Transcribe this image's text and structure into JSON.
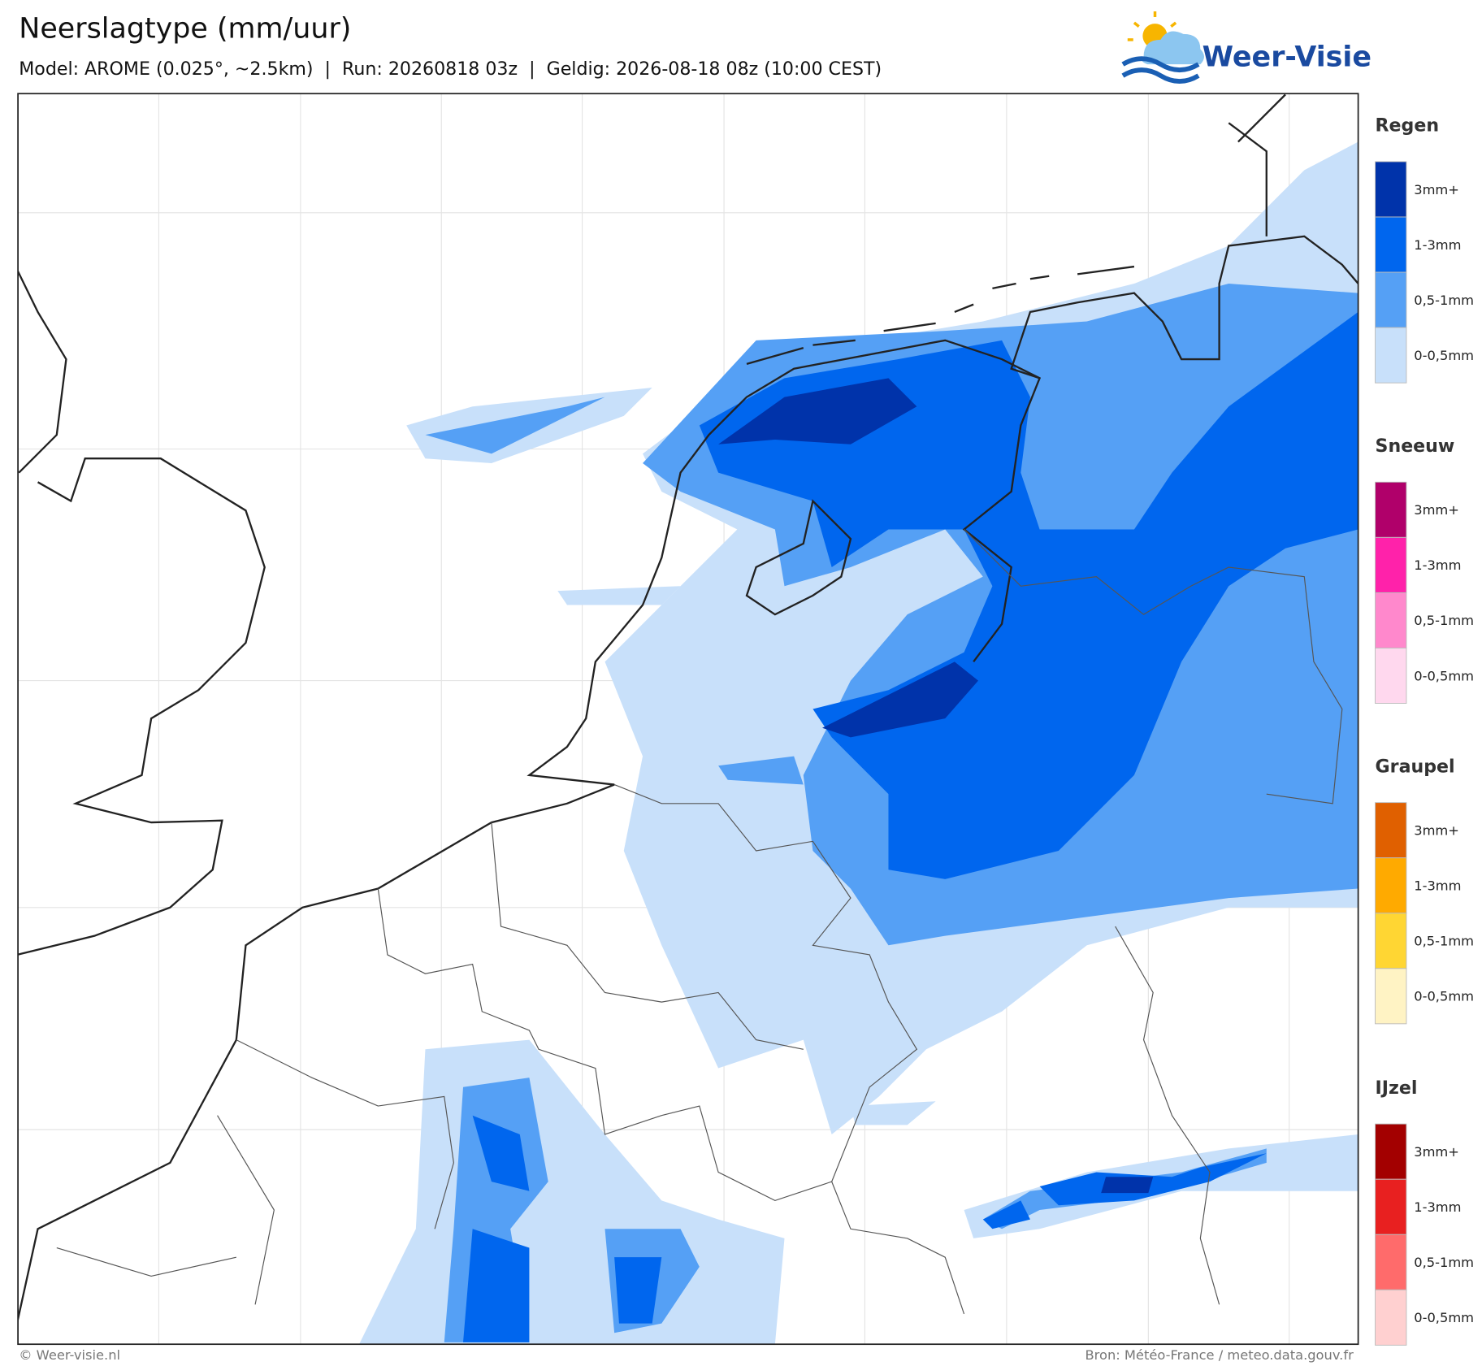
{
  "header": {
    "title": "Neerslagtype (mm/uur)",
    "subtitle": "Model: AROME (0.025°, ~2.5km)  |  Run: 20260818 03z  |  Geldig: 2026-08-18 08z (10:00 CEST)",
    "logo": "Weer-Visie"
  },
  "legend": [
    {
      "name": "Regen",
      "items": [
        {
          "label": "3mm+",
          "color": "#0033aa"
        },
        {
          "label": "1-3mm",
          "color": "#0066ee"
        },
        {
          "label": "0,5-1mm",
          "color": "#55a0f5"
        },
        {
          "label": "0-0,5mm",
          "color": "#c8e0fa"
        }
      ]
    },
    {
      "name": "Sneeuw",
      "items": [
        {
          "label": "3mm+",
          "color": "#b0006a"
        },
        {
          "label": "1-3mm",
          "color": "#ff22aa"
        },
        {
          "label": "0,5-1mm",
          "color": "#ff88cc"
        },
        {
          "label": "0-0,5mm",
          "color": "#ffd8ee"
        }
      ]
    },
    {
      "name": "Graupel",
      "items": [
        {
          "label": "3mm+",
          "color": "#e06000"
        },
        {
          "label": "1-3mm",
          "color": "#ffaa00"
        },
        {
          "label": "0,5-1mm",
          "color": "#ffd633"
        },
        {
          "label": "0-0,5mm",
          "color": "#fff3c4"
        }
      ]
    },
    {
      "name": "IJzel",
      "items": [
        {
          "label": "3mm+",
          "color": "#a30000"
        },
        {
          "label": "1-3mm",
          "color": "#e82020"
        },
        {
          "label": "0,5-1mm",
          "color": "#ff6b6b"
        },
        {
          "label": "0-0,5mm",
          "color": "#ffd0d0"
        }
      ]
    }
  ],
  "footer": {
    "left": "© Weer-visie.nl",
    "right": "Bron: Météo-France / meteo.data.gouv.fr"
  }
}
